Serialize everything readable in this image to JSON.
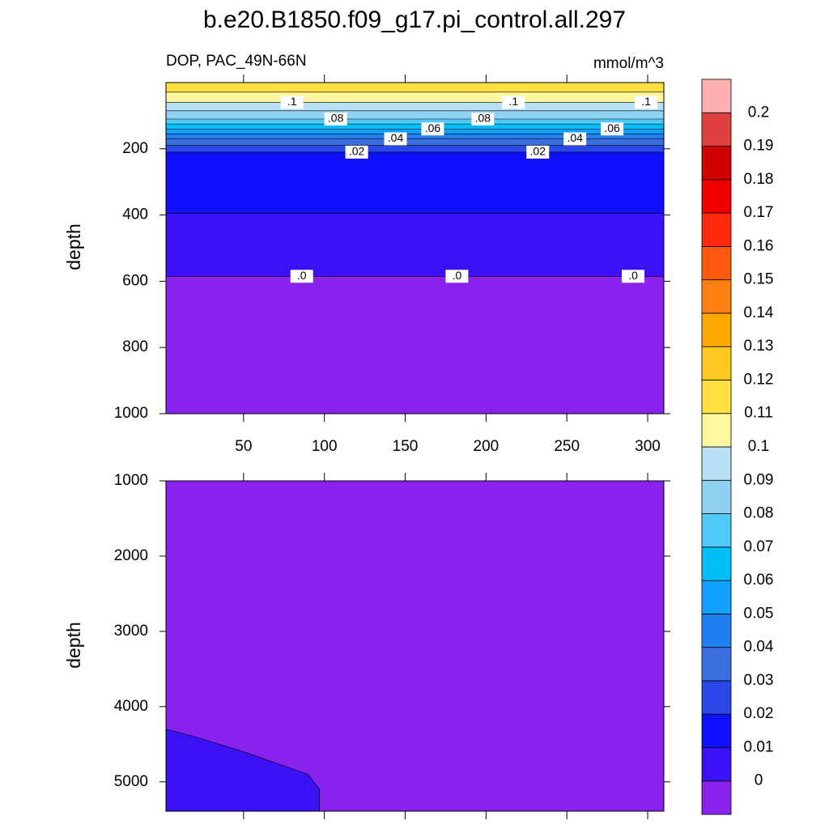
{
  "chart_data": {
    "type": "contour",
    "title": "b.e20.B1850.f09_g17.pi_control.all.297",
    "subtitle": "DOP, PAC_49N-66N",
    "units": "mmol/m^3",
    "yreverse": true,
    "colorbar": {
      "levels": [
        0,
        0.01,
        0.02,
        0.03,
        0.04,
        0.05,
        0.06,
        0.07,
        0.08,
        0.09,
        0.1,
        0.11,
        0.12,
        0.13,
        0.14,
        0.15,
        0.16,
        0.17,
        0.18,
        0.19,
        0.2
      ],
      "colors": [
        "#8a22ee",
        "#3b12f5",
        "#1010ff",
        "#2a48e8",
        "#3a6ee0",
        "#2080f0",
        "#10a0ff",
        "#00bff8",
        "#50c8f8",
        "#90d0f0",
        "#b8e0f4",
        "#fff7a0",
        "#ffe040",
        "#ffc820",
        "#ffa800",
        "#ff8010",
        "#ff5a10",
        "#ff2a10",
        "#f00000",
        "#d00000",
        "#e04040",
        "#ffb0b0"
      ]
    },
    "panels": [
      {
        "ylabel": "depth",
        "ylim": [
          0,
          1000
        ],
        "yticks": [
          200,
          400,
          600,
          800,
          1000
        ],
        "xlim": [
          2,
          310
        ],
        "xticks": [
          50,
          100,
          150,
          200,
          250,
          300
        ],
        "xtick_labels": true,
        "contours": {
          "levels": [
            0.11,
            0.1,
            0.09,
            0.08,
            0.07,
            0.06,
            0.05,
            0.04,
            0.03,
            0.02,
            0.01,
            0
          ],
          "depths": [
            29,
            60,
            85,
            110,
            125,
            140,
            155,
            170,
            190,
            210,
            395,
            585
          ]
        },
        "labels": [
          {
            "label": ".1",
            "x": 80,
            "level": 0.1
          },
          {
            "label": ".1",
            "x": 217,
            "level": 0.1
          },
          {
            "label": ".1",
            "x": 299,
            "level": 0.1
          },
          {
            "label": ".08",
            "x": 107,
            "level": 0.08
          },
          {
            "label": ".08",
            "x": 198,
            "level": 0.08
          },
          {
            "label": ".06",
            "x": 167,
            "level": 0.06
          },
          {
            "label": ".06",
            "x": 278,
            "level": 0.06
          },
          {
            "label": ".04",
            "x": 144,
            "level": 0.04
          },
          {
            "label": ".04",
            "x": 255,
            "level": 0.04
          },
          {
            "label": ".02",
            "x": 120,
            "level": 0.02
          },
          {
            "label": ".02",
            "x": 232,
            "level": 0.02
          },
          {
            "label": ".0",
            "x": 86,
            "level": 0
          },
          {
            "label": ".0",
            "x": 182,
            "level": 0
          },
          {
            "label": ".0",
            "x": 291,
            "level": 0
          }
        ]
      },
      {
        "ylabel": "depth",
        "ylim": [
          1000,
          5390
        ],
        "yticks": [
          1000,
          2000,
          3000,
          4000,
          5000
        ],
        "xlim": [
          2,
          310
        ],
        "xticks": [
          50,
          100,
          150,
          200,
          250,
          300
        ],
        "xtick_labels": false,
        "contour_line": {
          "level": 0,
          "x": [
            2,
            20,
            50,
            90,
            97,
            97
          ],
          "depth": [
            4300,
            4400,
            4600,
            4900,
            5100,
            5390
          ]
        }
      }
    ]
  }
}
